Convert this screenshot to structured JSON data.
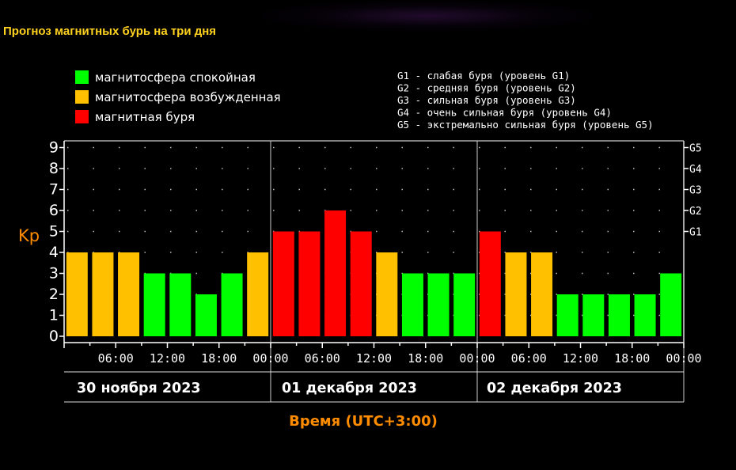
{
  "title": "Прогноз магнитных бурь на три дня",
  "legend": {
    "items": [
      {
        "label": "магнитосфера спокойная",
        "color": "#00ff00"
      },
      {
        "label": "магнитосфера возбужденная",
        "color": "#ffc000"
      },
      {
        "label": "магнитная буря",
        "color": "#ff0000"
      }
    ],
    "g_scale": [
      "G1 - слабая буря (уровень G1)",
      "G2 - средняя буря (уровень G2)",
      "G3 - сильная буря (уровень G3)",
      "G4 - очень сильная буря (уровень G4)",
      "G5 - экстремально сильная буря (уровень G5)"
    ]
  },
  "chart_data": {
    "type": "bar",
    "ylabel": "Kp",
    "xlabel": "Время (UTC+3:00)",
    "ylim": [
      0,
      9
    ],
    "yticks": [
      "0",
      "1",
      "2",
      "3",
      "4",
      "5",
      "6",
      "7",
      "8",
      "9"
    ],
    "right_ticks": [
      {
        "y": 5,
        "label": "G1"
      },
      {
        "y": 6,
        "label": "G2"
      },
      {
        "y": 7,
        "label": "G3"
      },
      {
        "y": 8,
        "label": "G4"
      },
      {
        "y": 9,
        "label": "G5"
      }
    ],
    "time_ticks": [
      "06:00",
      "12:00",
      "18:00",
      "00:00",
      "06:00",
      "12:00",
      "18:00",
      "00:00",
      "06:00",
      "12:00",
      "18:00",
      "00:00"
    ],
    "days": [
      "30 ноября 2023",
      "01 декабря 2023",
      "02 декабря 2023"
    ],
    "grid": true,
    "bars": [
      {
        "kp": 4,
        "status": "возбужденная"
      },
      {
        "kp": 4,
        "status": "возбужденная"
      },
      {
        "kp": 4,
        "status": "возбужденная"
      },
      {
        "kp": 3,
        "status": "спокойная"
      },
      {
        "kp": 3,
        "status": "спокойная"
      },
      {
        "kp": 2,
        "status": "спокойная"
      },
      {
        "kp": 3,
        "status": "спокойная"
      },
      {
        "kp": 4,
        "status": "возбужденная"
      },
      {
        "kp": 5,
        "status": "буря"
      },
      {
        "kp": 5,
        "status": "буря"
      },
      {
        "kp": 6,
        "status": "буря"
      },
      {
        "kp": 5,
        "status": "буря"
      },
      {
        "kp": 4,
        "status": "возбужденная"
      },
      {
        "kp": 3,
        "status": "спокойная"
      },
      {
        "kp": 3,
        "status": "спокойная"
      },
      {
        "kp": 3,
        "status": "спокойная"
      },
      {
        "kp": 5,
        "status": "буря"
      },
      {
        "kp": 4,
        "status": "возбужденная"
      },
      {
        "kp": 4,
        "status": "возбужденная"
      },
      {
        "kp": 2,
        "status": "спокойная"
      },
      {
        "kp": 2,
        "status": "спокойная"
      },
      {
        "kp": 2,
        "status": "спокойная"
      },
      {
        "kp": 2,
        "status": "спокойная"
      },
      {
        "kp": 3,
        "status": "спокойная"
      }
    ],
    "status_colors": {
      "спокойная": "#00ff00",
      "возбужденная": "#ffc000",
      "буря": "#ff0000"
    },
    "label_color": "#ff8c00",
    "axis_color": "#ffffff"
  }
}
